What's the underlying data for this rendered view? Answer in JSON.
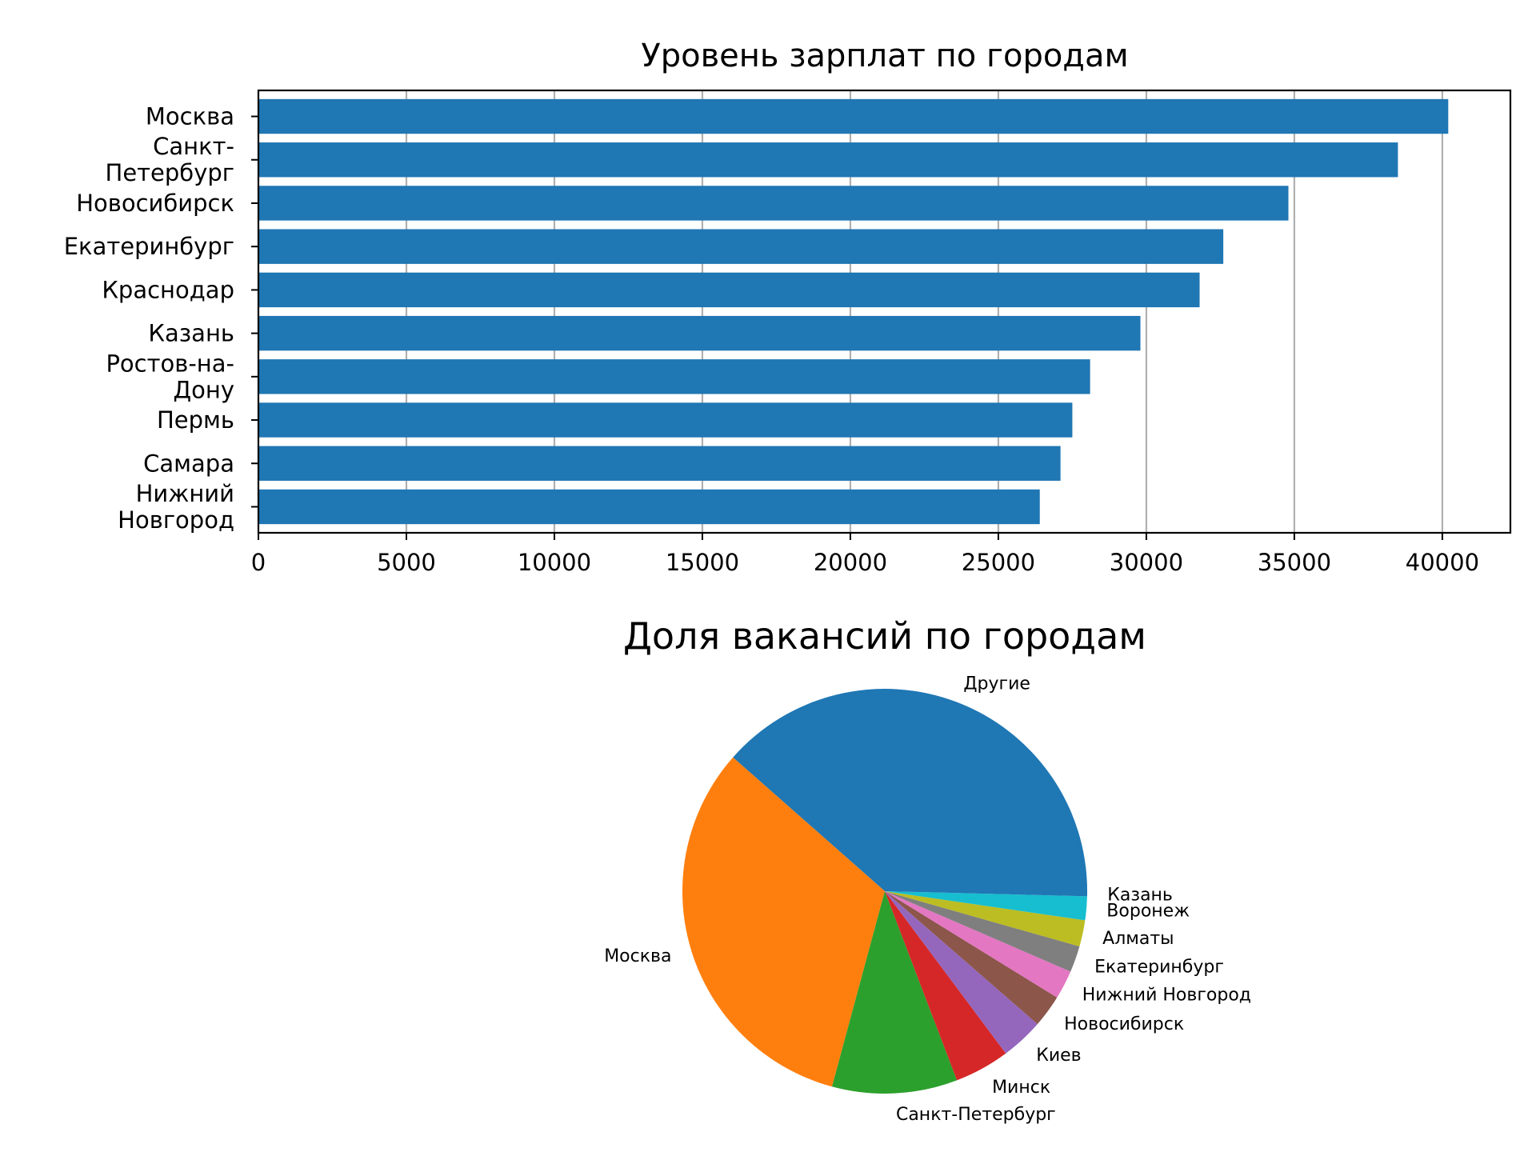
{
  "chart_data": [
    {
      "type": "bar",
      "orientation": "horizontal",
      "title": "Уровень зарплат по городам",
      "xlabel": "",
      "ylabel": "",
      "categories": [
        [
          "Москва"
        ],
        [
          "Санкт-",
          "Петербург"
        ],
        [
          "Новосибирск"
        ],
        [
          "Екатеринбург"
        ],
        [
          "Краснодар"
        ],
        [
          "Казань"
        ],
        [
          "Ростов-на-",
          "Дону"
        ],
        [
          "Пермь"
        ],
        [
          "Самара"
        ],
        [
          "Нижний",
          "Новгород"
        ]
      ],
      "values": [
        40200,
        38500,
        34800,
        32600,
        31800,
        29800,
        28100,
        27500,
        27100,
        26400
      ],
      "xlim": [
        0,
        42300
      ],
      "xticks": [
        0,
        5000,
        10000,
        15000,
        20000,
        25000,
        30000,
        35000,
        40000
      ],
      "xtick_labels": [
        "0",
        "5000",
        "10000",
        "15000",
        "20000",
        "25000",
        "30000",
        "35000",
        "40000"
      ],
      "grid": "x",
      "color": "#1f77b4"
    },
    {
      "type": "pie",
      "title": "Доля вакансий по городам",
      "start_angle_deg": 0,
      "direction": "counterclockwise",
      "slices": [
        {
          "label": "Другие",
          "value": 38.5,
          "color": "#1f77b4"
        },
        {
          "label": "Москва",
          "value": 32.3,
          "color": "#ff7f0e"
        },
        {
          "label": "Санкт-Петербург",
          "value": 10.0,
          "color": "#2ca02c"
        },
        {
          "label": "Минск",
          "value": 4.4,
          "color": "#d62728"
        },
        {
          "label": "Киев",
          "value": 3.4,
          "color": "#9467bd"
        },
        {
          "label": "Новосибирск",
          "value": 2.6,
          "color": "#8c564b"
        },
        {
          "label": "Нижний Новгород",
          "value": 2.3,
          "color": "#e377c2"
        },
        {
          "label": "Екатеринбург",
          "value": 2.1,
          "color": "#7f7f7f"
        },
        {
          "label": "Алматы",
          "value": 2.1,
          "color": "#bcbd22"
        },
        {
          "label": "Воронеж",
          "value": 1.9,
          "color": "#17becf"
        },
        {
          "label": "Казань",
          "value": 0.4,
          "color": "#1f77b4"
        }
      ]
    }
  ]
}
